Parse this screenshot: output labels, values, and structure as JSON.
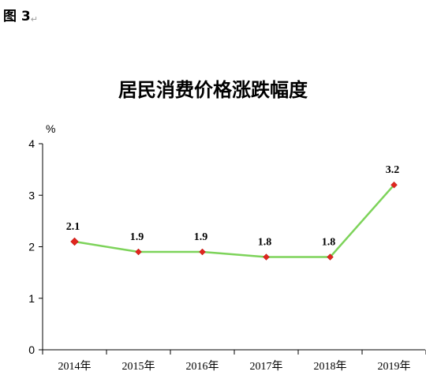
{
  "figure_label": "图 3",
  "figure_mark": "↵",
  "chart_data": {
    "type": "line",
    "title": "居民消费价格涨跌幅度",
    "ylabel": "%",
    "categories": [
      "2014年",
      "2015年",
      "2016年",
      "2017年",
      "2018年",
      "2019年"
    ],
    "series": [
      {
        "values": [
          2.1,
          1.9,
          1.9,
          1.8,
          1.8,
          3.2
        ],
        "labels": [
          "2.1",
          "1.9",
          "1.9",
          "1.8",
          "1.8",
          "3.2"
        ]
      }
    ],
    "ylim": [
      0,
      4
    ],
    "yticks": [
      "0",
      "1",
      "2",
      "3",
      "4"
    ],
    "grid": false,
    "legend": "none",
    "line_color": "#7dd35a",
    "marker_color": "#e0261f"
  }
}
